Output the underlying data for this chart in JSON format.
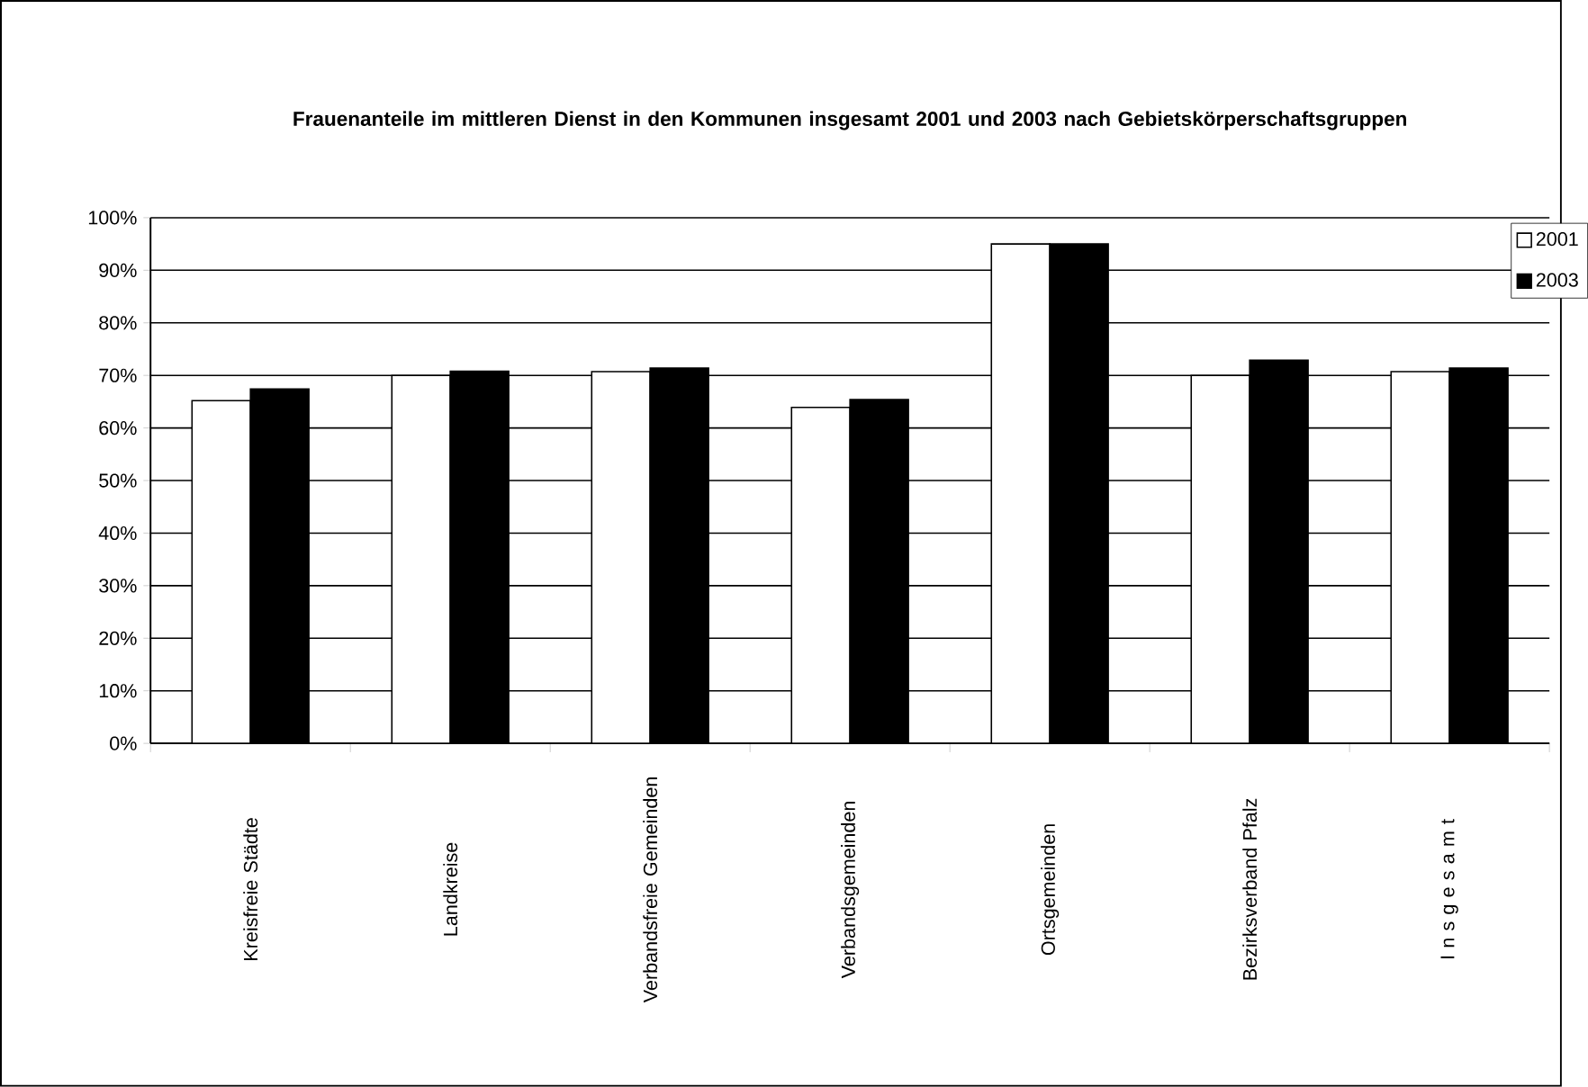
{
  "chart_data": {
    "type": "bar",
    "title": "Frauenanteile im mittleren Dienst in den Kommunen insgesamt 2001 und 2003 nach Gebietskörperschaftsgruppen",
    "categories": [
      "Kreisfreie Städte",
      "Landkreise",
      "Verbandsfreie Gemeinden",
      "Verbandsgemeinden",
      "Ortsgemeinden",
      "Bezirksverband Pfalz",
      "I n s g e s a m t"
    ],
    "series": [
      {
        "name": "2001",
        "color": "#ffffff",
        "values": [
          65.2,
          70.0,
          70.7,
          63.9,
          95.0,
          70.0,
          70.7
        ]
      },
      {
        "name": "2003",
        "color": "#000000",
        "values": [
          67.4,
          70.8,
          71.4,
          65.4,
          95.0,
          72.9,
          71.4
        ]
      }
    ],
    "ylim": [
      0,
      100
    ],
    "yticks": [
      {
        "value": 0,
        "label": "0%"
      },
      {
        "value": 10,
        "label": "10%"
      },
      {
        "value": 20,
        "label": "20%"
      },
      {
        "value": 30,
        "label": "30%"
      },
      {
        "value": 40,
        "label": "40%"
      },
      {
        "value": 50,
        "label": "50%"
      },
      {
        "value": 60,
        "label": "60%"
      },
      {
        "value": 70,
        "label": "70%"
      },
      {
        "value": 80,
        "label": "80%"
      },
      {
        "value": 90,
        "label": "90%"
      },
      {
        "value": 100,
        "label": "100%"
      }
    ],
    "grid": "y",
    "legend": "top right"
  }
}
